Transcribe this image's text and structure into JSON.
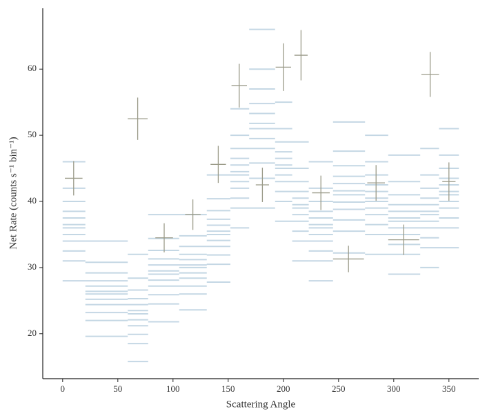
{
  "chart_data": {
    "type": "binned-posterior",
    "xlabel": "Scattering Angle",
    "ylabel": "Net Rate (counts s⁻¹ bin⁻¹)",
    "xlim": [
      -18,
      377
    ],
    "ylim": [
      13.2,
      69.2
    ],
    "xticks": [
      0,
      50,
      100,
      150,
      200,
      250,
      300,
      350
    ],
    "yticks": [
      20,
      30,
      40,
      50,
      60
    ],
    "model_color": "#2c6e9e",
    "data_color": "#9a9a88",
    "bin_edges": [
      0,
      20.6,
      59,
      77.5,
      105.6,
      130.6,
      152,
      169,
      192.5,
      208,
      223,
      245,
      274,
      295,
      324,
      341,
      359
    ],
    "model_samples": [
      [
        28,
        31,
        32.5,
        34,
        35,
        36,
        36.5,
        37.5,
        38.5,
        40,
        42,
        46
      ],
      [
        19.6,
        22,
        23.2,
        24.4,
        25.2,
        26,
        26.4,
        27.2,
        28,
        29.2,
        30.8,
        34
      ],
      [
        15.8,
        18.5,
        19.9,
        21.2,
        22.1,
        23,
        23.5,
        24.4,
        25.3,
        26.6,
        28.4,
        32
      ],
      [
        21.8,
        24.5,
        25.9,
        27.2,
        28.1,
        29,
        29.5,
        30.4,
        31.3,
        32.6,
        34.4,
        38
      ],
      [
        23.6,
        26,
        27.2,
        28.4,
        29.2,
        30,
        30.4,
        31.2,
        32,
        33.2,
        34.8,
        38
      ],
      [
        27.8,
        30.5,
        31.9,
        33.2,
        34.1,
        35,
        35.5,
        36.4,
        37.3,
        38.6,
        40.4,
        44
      ],
      [
        36,
        39,
        40.5,
        42,
        43,
        44,
        44.5,
        45.5,
        46.5,
        48,
        50,
        54
      ],
      [
        39,
        43.5,
        45.8,
        48,
        49.5,
        51,
        51.8,
        53.3,
        54.8,
        57,
        60,
        66
      ],
      [
        37,
        40,
        41.5,
        43,
        44,
        45,
        45.5,
        46.5,
        47.5,
        49,
        51,
        55
      ],
      [
        31,
        34,
        35.5,
        37,
        38,
        39,
        39.5,
        40.5,
        41.5,
        43,
        45,
        49
      ],
      [
        28,
        31,
        32.5,
        34,
        35,
        36,
        36.5,
        37.5,
        38.5,
        40,
        42,
        46
      ],
      [
        32.2,
        35.5,
        37.2,
        38.8,
        39.9,
        41,
        41.6,
        42.7,
        43.8,
        45.4,
        47.6,
        52
      ],
      [
        32,
        35,
        36.5,
        38,
        39,
        40,
        40.5,
        41.5,
        42.5,
        44,
        46,
        50
      ],
      [
        29,
        32,
        33.5,
        35,
        36,
        37,
        37.5,
        38.5,
        39.5,
        41,
        43,
        47
      ],
      [
        30,
        33,
        34.5,
        36,
        37,
        38,
        38.5,
        39.5,
        40.5,
        42,
        44,
        48
      ],
      [
        33,
        36,
        37.5,
        39,
        40,
        41,
        41.5,
        42.5,
        43.5,
        45,
        47,
        51
      ]
    ],
    "data": {
      "x": [
        10,
        68,
        92,
        118,
        141,
        160,
        181,
        200,
        216,
        234,
        259,
        284,
        309,
        333,
        350
      ],
      "xerr": [
        8,
        9,
        8,
        7,
        7,
        7,
        6,
        7,
        6,
        8,
        14,
        8,
        14,
        8,
        6
      ],
      "y": [
        43.5,
        52.5,
        34.5,
        38,
        45.6,
        57.5,
        42.5,
        60.3,
        62.1,
        41.3,
        31.3,
        42.8,
        34.2,
        59.2,
        43
      ],
      "yerr": [
        2.6,
        3.2,
        2.2,
        2.3,
        2.8,
        3.3,
        2.6,
        3.6,
        3.8,
        2.6,
        2,
        2.7,
        2.3,
        3.4,
        2.9
      ]
    }
  }
}
